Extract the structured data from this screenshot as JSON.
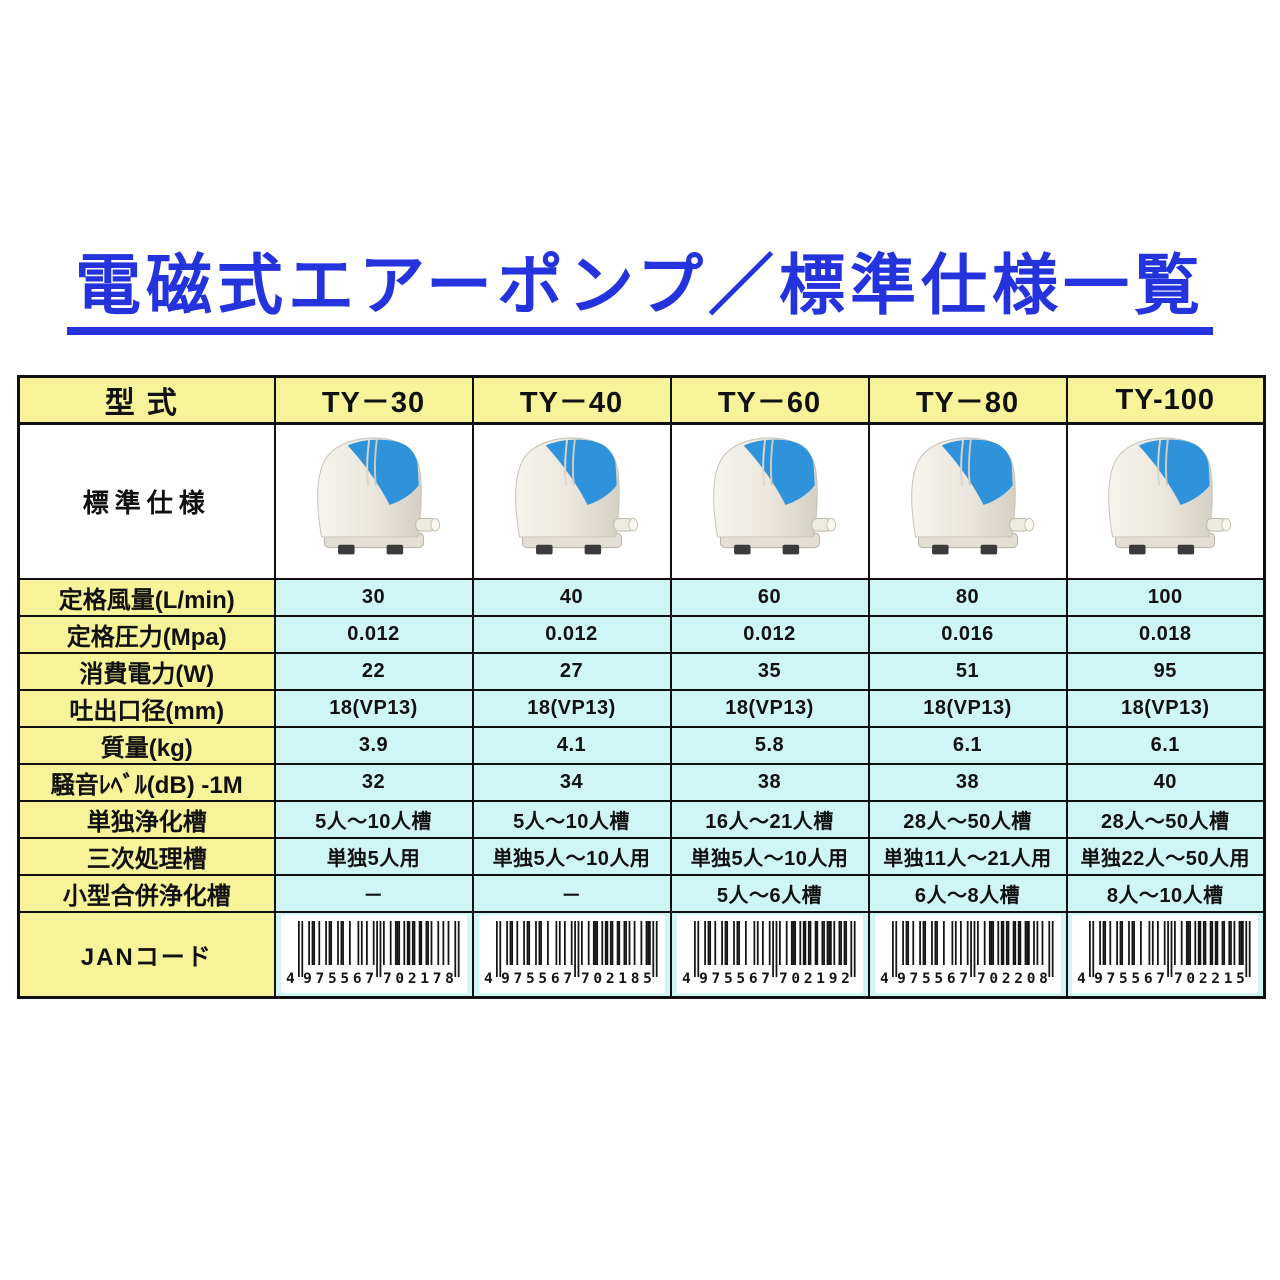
{
  "title": {
    "text": "電磁式エアーポンプ／標準仕様一覧"
  },
  "table": {
    "header": {
      "label": "型式",
      "models": [
        "TY－30",
        "TY－40",
        "TY－60",
        "TY－80",
        "TY-100"
      ]
    },
    "image_row": {
      "label": "標準仕様",
      "image_name": "air-pump-product-photo"
    },
    "spec_rows": [
      {
        "key": "rated-airflow",
        "label": "定格風量(L/min)",
        "values": [
          "30",
          "40",
          "60",
          "80",
          "100"
        ]
      },
      {
        "key": "rated-pressure",
        "label": "定格圧力(Mpa)",
        "values": [
          "0.012",
          "0.012",
          "0.012",
          "0.016",
          "0.018"
        ]
      },
      {
        "key": "power-consumption",
        "label": "消費電力(W)",
        "values": [
          "22",
          "27",
          "35",
          "51",
          "95"
        ]
      },
      {
        "key": "outlet-diameter",
        "label": "吐出口径(mm)",
        "values": [
          "18(VP13)",
          "18(VP13)",
          "18(VP13)",
          "18(VP13)",
          "18(VP13)"
        ]
      },
      {
        "key": "mass",
        "label": "質量(kg)",
        "values": [
          "3.9",
          "4.1",
          "5.8",
          "6.1",
          "6.1"
        ]
      },
      {
        "key": "noise-level",
        "label": "騒音ﾚﾍﾞﾙ(dB) -1M",
        "values": [
          "32",
          "34",
          "38",
          "38",
          "40"
        ]
      },
      {
        "key": "single-johkasou",
        "label": "単独浄化槽",
        "values": [
          "5人～10人槽",
          "5人～10人槽",
          "16人～21人槽",
          "28人～50人槽",
          "28人～50人槽"
        ]
      },
      {
        "key": "tertiary-treatment",
        "label": "三次処理槽",
        "values": [
          "単独5人用",
          "単独5人～10人用",
          "単独5人～10人用",
          "単独11人～21人用",
          "単独22人～50人用"
        ]
      },
      {
        "key": "small-gappei-johkasou",
        "label": "小型合併浄化槽",
        "values": [
          "－",
          "－",
          "5人～6人槽",
          "6人～8人槽",
          "8人～10人槽"
        ]
      }
    ],
    "jan_row": {
      "label": "JANコード",
      "values": [
        "4975567702178",
        "4975567702185",
        "4975567702192",
        "4975567702208",
        "4975567702215"
      ]
    }
  },
  "colors": {
    "title_blue": "#2433DC",
    "title_glow": "#BCC8F4",
    "label_bg": "#F6F398",
    "value_bg": "#CFF5F4",
    "border": "#101010",
    "pump_blue": "#2E93DA",
    "pump_body": "#EAE6DD"
  }
}
